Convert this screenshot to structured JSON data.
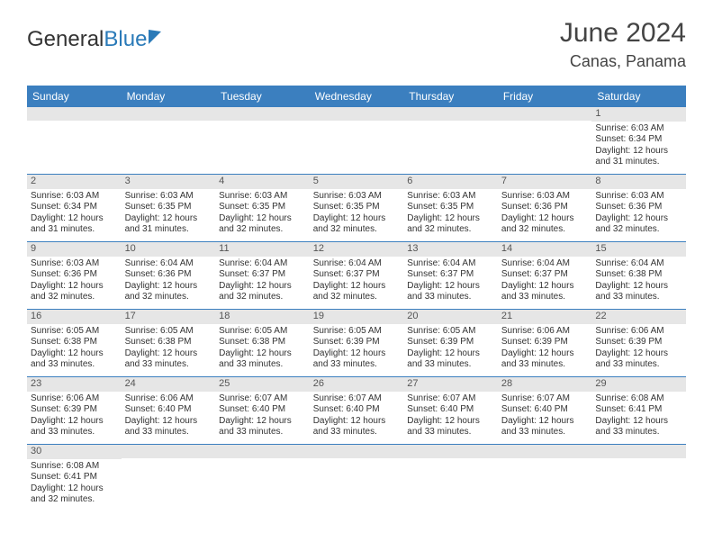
{
  "logo": {
    "part1": "General",
    "part2": "Blue"
  },
  "title": "June 2024",
  "location": "Canas, Panama",
  "colors": {
    "header_bg": "#3b7fbf",
    "header_text": "#ffffff",
    "daynum_bg": "#e6e6e6",
    "border": "#3b7fbf",
    "text": "#333333",
    "logo_blue": "#2a7ab8"
  },
  "day_headers": [
    "Sunday",
    "Monday",
    "Tuesday",
    "Wednesday",
    "Thursday",
    "Friday",
    "Saturday"
  ],
  "weeks": [
    [
      {
        "n": "",
        "sr": "",
        "ss": "",
        "dl": ""
      },
      {
        "n": "",
        "sr": "",
        "ss": "",
        "dl": ""
      },
      {
        "n": "",
        "sr": "",
        "ss": "",
        "dl": ""
      },
      {
        "n": "",
        "sr": "",
        "ss": "",
        "dl": ""
      },
      {
        "n": "",
        "sr": "",
        "ss": "",
        "dl": ""
      },
      {
        "n": "",
        "sr": "",
        "ss": "",
        "dl": ""
      },
      {
        "n": "1",
        "sr": "Sunrise: 6:03 AM",
        "ss": "Sunset: 6:34 PM",
        "dl": "Daylight: 12 hours and 31 minutes."
      }
    ],
    [
      {
        "n": "2",
        "sr": "Sunrise: 6:03 AM",
        "ss": "Sunset: 6:34 PM",
        "dl": "Daylight: 12 hours and 31 minutes."
      },
      {
        "n": "3",
        "sr": "Sunrise: 6:03 AM",
        "ss": "Sunset: 6:35 PM",
        "dl": "Daylight: 12 hours and 31 minutes."
      },
      {
        "n": "4",
        "sr": "Sunrise: 6:03 AM",
        "ss": "Sunset: 6:35 PM",
        "dl": "Daylight: 12 hours and 32 minutes."
      },
      {
        "n": "5",
        "sr": "Sunrise: 6:03 AM",
        "ss": "Sunset: 6:35 PM",
        "dl": "Daylight: 12 hours and 32 minutes."
      },
      {
        "n": "6",
        "sr": "Sunrise: 6:03 AM",
        "ss": "Sunset: 6:35 PM",
        "dl": "Daylight: 12 hours and 32 minutes."
      },
      {
        "n": "7",
        "sr": "Sunrise: 6:03 AM",
        "ss": "Sunset: 6:36 PM",
        "dl": "Daylight: 12 hours and 32 minutes."
      },
      {
        "n": "8",
        "sr": "Sunrise: 6:03 AM",
        "ss": "Sunset: 6:36 PM",
        "dl": "Daylight: 12 hours and 32 minutes."
      }
    ],
    [
      {
        "n": "9",
        "sr": "Sunrise: 6:03 AM",
        "ss": "Sunset: 6:36 PM",
        "dl": "Daylight: 12 hours and 32 minutes."
      },
      {
        "n": "10",
        "sr": "Sunrise: 6:04 AM",
        "ss": "Sunset: 6:36 PM",
        "dl": "Daylight: 12 hours and 32 minutes."
      },
      {
        "n": "11",
        "sr": "Sunrise: 6:04 AM",
        "ss": "Sunset: 6:37 PM",
        "dl": "Daylight: 12 hours and 32 minutes."
      },
      {
        "n": "12",
        "sr": "Sunrise: 6:04 AM",
        "ss": "Sunset: 6:37 PM",
        "dl": "Daylight: 12 hours and 32 minutes."
      },
      {
        "n": "13",
        "sr": "Sunrise: 6:04 AM",
        "ss": "Sunset: 6:37 PM",
        "dl": "Daylight: 12 hours and 33 minutes."
      },
      {
        "n": "14",
        "sr": "Sunrise: 6:04 AM",
        "ss": "Sunset: 6:37 PM",
        "dl": "Daylight: 12 hours and 33 minutes."
      },
      {
        "n": "15",
        "sr": "Sunrise: 6:04 AM",
        "ss": "Sunset: 6:38 PM",
        "dl": "Daylight: 12 hours and 33 minutes."
      }
    ],
    [
      {
        "n": "16",
        "sr": "Sunrise: 6:05 AM",
        "ss": "Sunset: 6:38 PM",
        "dl": "Daylight: 12 hours and 33 minutes."
      },
      {
        "n": "17",
        "sr": "Sunrise: 6:05 AM",
        "ss": "Sunset: 6:38 PM",
        "dl": "Daylight: 12 hours and 33 minutes."
      },
      {
        "n": "18",
        "sr": "Sunrise: 6:05 AM",
        "ss": "Sunset: 6:38 PM",
        "dl": "Daylight: 12 hours and 33 minutes."
      },
      {
        "n": "19",
        "sr": "Sunrise: 6:05 AM",
        "ss": "Sunset: 6:39 PM",
        "dl": "Daylight: 12 hours and 33 minutes."
      },
      {
        "n": "20",
        "sr": "Sunrise: 6:05 AM",
        "ss": "Sunset: 6:39 PM",
        "dl": "Daylight: 12 hours and 33 minutes."
      },
      {
        "n": "21",
        "sr": "Sunrise: 6:06 AM",
        "ss": "Sunset: 6:39 PM",
        "dl": "Daylight: 12 hours and 33 minutes."
      },
      {
        "n": "22",
        "sr": "Sunrise: 6:06 AM",
        "ss": "Sunset: 6:39 PM",
        "dl": "Daylight: 12 hours and 33 minutes."
      }
    ],
    [
      {
        "n": "23",
        "sr": "Sunrise: 6:06 AM",
        "ss": "Sunset: 6:39 PM",
        "dl": "Daylight: 12 hours and 33 minutes."
      },
      {
        "n": "24",
        "sr": "Sunrise: 6:06 AM",
        "ss": "Sunset: 6:40 PM",
        "dl": "Daylight: 12 hours and 33 minutes."
      },
      {
        "n": "25",
        "sr": "Sunrise: 6:07 AM",
        "ss": "Sunset: 6:40 PM",
        "dl": "Daylight: 12 hours and 33 minutes."
      },
      {
        "n": "26",
        "sr": "Sunrise: 6:07 AM",
        "ss": "Sunset: 6:40 PM",
        "dl": "Daylight: 12 hours and 33 minutes."
      },
      {
        "n": "27",
        "sr": "Sunrise: 6:07 AM",
        "ss": "Sunset: 6:40 PM",
        "dl": "Daylight: 12 hours and 33 minutes."
      },
      {
        "n": "28",
        "sr": "Sunrise: 6:07 AM",
        "ss": "Sunset: 6:40 PM",
        "dl": "Daylight: 12 hours and 33 minutes."
      },
      {
        "n": "29",
        "sr": "Sunrise: 6:08 AM",
        "ss": "Sunset: 6:41 PM",
        "dl": "Daylight: 12 hours and 33 minutes."
      }
    ],
    [
      {
        "n": "30",
        "sr": "Sunrise: 6:08 AM",
        "ss": "Sunset: 6:41 PM",
        "dl": "Daylight: 12 hours and 32 minutes."
      },
      {
        "n": "",
        "sr": "",
        "ss": "",
        "dl": ""
      },
      {
        "n": "",
        "sr": "",
        "ss": "",
        "dl": ""
      },
      {
        "n": "",
        "sr": "",
        "ss": "",
        "dl": ""
      },
      {
        "n": "",
        "sr": "",
        "ss": "",
        "dl": ""
      },
      {
        "n": "",
        "sr": "",
        "ss": "",
        "dl": ""
      },
      {
        "n": "",
        "sr": "",
        "ss": "",
        "dl": ""
      }
    ]
  ]
}
